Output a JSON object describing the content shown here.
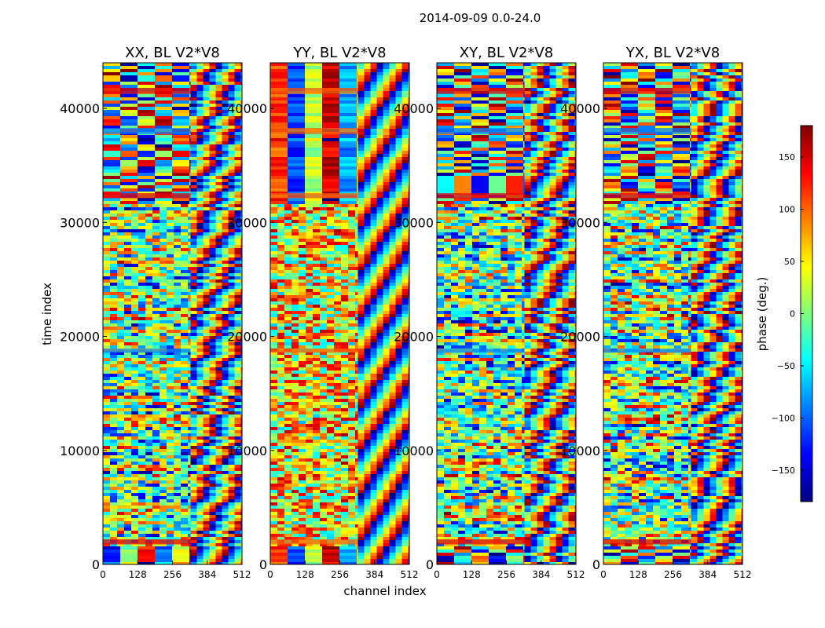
{
  "figure": {
    "suptitle": "2014-09-09 0.0-24.0"
  },
  "colormap": {
    "name": "jet",
    "stops": [
      "#00007f",
      "#0000ff",
      "#007fff",
      "#00ffff",
      "#7fff7f",
      "#ffff00",
      "#ff7f00",
      "#ff0000",
      "#7f0000"
    ]
  },
  "chart_data": {
    "type": "heatmap",
    "title": "2014-09-09 0.0-24.0",
    "xlabel": "channel index",
    "ylabel": "time index",
    "x_range": [
      0,
      512
    ],
    "y_range": [
      0,
      44000
    ],
    "x_ticks": [
      0,
      128,
      256,
      384,
      512
    ],
    "y_ticks": [
      0,
      10000,
      20000,
      30000,
      40000
    ],
    "panels": [
      {
        "title": "XX, BL V2*V8",
        "polarization": "XX"
      },
      {
        "title": "YY, BL V2*V8",
        "polarization": "YY"
      },
      {
        "title": "XY, BL V2*V8",
        "polarization": "XY"
      },
      {
        "title": "YX, BL V2*V8",
        "polarization": "YX"
      }
    ],
    "colorbar": {
      "label": "phase (deg.)",
      "range": [
        -180,
        180
      ],
      "ticks": [
        -150,
        -100,
        -50,
        0,
        50,
        100,
        150
      ],
      "tick_labels": [
        "−150",
        "−100",
        "−50",
        "0",
        "50",
        "100",
        "150"
      ]
    }
  }
}
